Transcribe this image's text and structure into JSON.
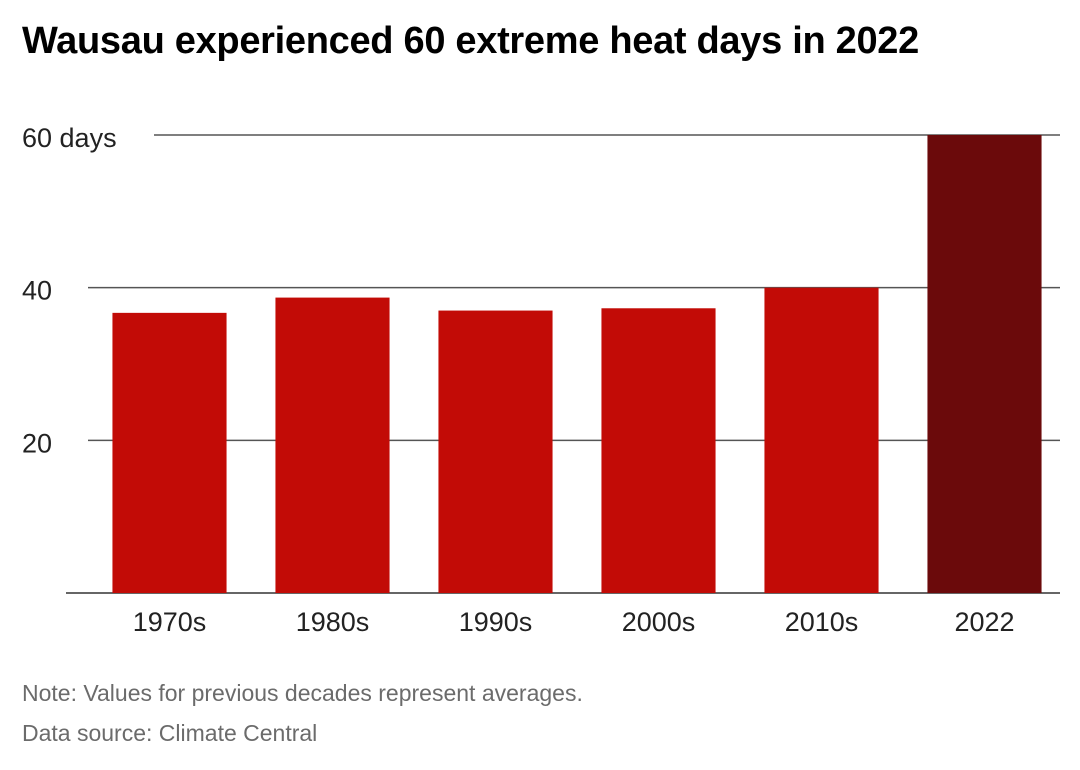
{
  "title": "Wausau experienced 60 extreme heat days in 2022",
  "note": "Note: Values for previous decades represent averages.",
  "source": "Data source: Climate Central",
  "colors": {
    "bar": "#c20b06",
    "highlight": "#6b0a0b",
    "grid": "#555555",
    "text": "#222222"
  },
  "chart_data": {
    "type": "bar",
    "title": "Wausau experienced 60 extreme heat days in 2022",
    "categories": [
      "1970s",
      "1980s",
      "1990s",
      "2000s",
      "2010s",
      "2022"
    ],
    "values": [
      36.7,
      38.7,
      37.0,
      37.3,
      40.0,
      60.0
    ],
    "highlight_index": 5,
    "ylim": [
      0,
      60
    ],
    "yticks": [
      {
        "value": 20,
        "label": "20"
      },
      {
        "value": 40,
        "label": "40"
      },
      {
        "value": 60,
        "label": "60 days"
      }
    ],
    "grid": true,
    "xlabel": "",
    "ylabel": ""
  }
}
